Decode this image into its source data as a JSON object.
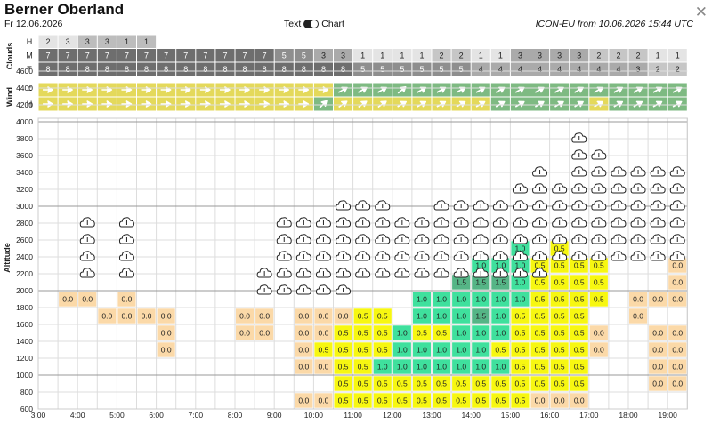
{
  "header": {
    "title": "Berner Oberland",
    "date": "Fr 12.06.2026",
    "toggle_text": "Text",
    "toggle_chart": "Chart",
    "model_info": "ICON-EU from 10.06.2026 15:44 UTC",
    "close_glyph": "✕"
  },
  "colors": {
    "cell_00": "#fbd9a8",
    "cell_05": "#f7f711",
    "cell_10": "#3fe09d",
    "cell_15": "#55b586",
    "wind_yellow": "#e4d95b",
    "wind_green": "#7eba82",
    "grid": "#dddddd"
  },
  "chart_data": {
    "type": "heatmap",
    "ylabel": "Altitude",
    "clouds_label": "Clouds",
    "wind_label": "Wind",
    "cloud_row_labels": [
      "H",
      "M",
      "T"
    ],
    "wind_row_labels": [
      "F",
      "H"
    ],
    "x_ticks": [
      "3:00",
      "4:00",
      "5:00",
      "6:00",
      "7:00",
      "8:00",
      "9:00",
      "10:00",
      "11:00",
      "12:00",
      "13:00",
      "14:00",
      "15:00",
      "16:00",
      "17:00",
      "18:00",
      "19:00"
    ],
    "y_ticks": [
      600,
      800,
      1000,
      1200,
      1400,
      1600,
      1800,
      2000,
      2200,
      2400,
      2600,
      2800,
      3000,
      3200,
      3400,
      3600,
      3800,
      4000,
      4200,
      4400,
      4600
    ],
    "ylim": [
      600,
      4700
    ],
    "clouds_H": [
      "2",
      "3",
      "3",
      "3",
      "1",
      "1",
      "",
      "",
      "",
      "",
      "",
      "",
      "",
      "",
      "",
      "",
      "",
      "",
      "",
      "",
      "",
      "",
      "",
      "",
      "",
      "",
      "",
      "",
      "",
      "",
      "",
      "",
      ""
    ],
    "clouds_M": [
      "7",
      "7",
      "7",
      "7",
      "7",
      "7",
      "7",
      "7",
      "7",
      "7",
      "7",
      "7",
      "5",
      "5",
      "3",
      "3",
      "1",
      "1",
      "1",
      "1",
      "2",
      "2",
      "1",
      "1",
      "3",
      "3",
      "3",
      "3",
      "2",
      "2",
      "2",
      "1",
      "1"
    ],
    "clouds_T": [
      "8",
      "8",
      "8",
      "8",
      "8",
      "8",
      "8",
      "8",
      "8",
      "8",
      "8",
      "8",
      "8",
      "8",
      "8",
      "8",
      "5",
      "5",
      "5",
      "5",
      "5",
      "5",
      "4",
      "4",
      "4",
      "4",
      "4",
      "4",
      "4",
      "4",
      "3",
      "2",
      "2"
    ],
    "cloud_icon_rows": [
      {
        "alt": 2000,
        "cols": [
          11,
          12,
          13,
          14,
          15
        ]
      },
      {
        "alt": 2200,
        "cols": [
          2,
          4,
          11,
          12,
          13,
          14,
          15,
          16,
          17,
          18,
          19,
          20,
          21,
          22,
          23,
          24,
          25
        ]
      },
      {
        "alt": 2400,
        "cols": [
          2,
          4,
          12,
          13,
          14,
          15,
          16,
          17,
          18,
          19,
          20,
          21,
          22,
          23,
          24,
          25,
          26,
          27,
          28,
          29,
          30,
          31,
          32
        ]
      },
      {
        "alt": 2600,
        "cols": [
          2,
          4,
          12,
          13,
          14,
          15,
          16,
          17,
          18,
          19,
          20,
          21,
          22,
          23,
          24,
          25,
          26,
          27,
          28,
          29,
          30,
          31,
          32
        ]
      },
      {
        "alt": 2800,
        "cols": [
          2,
          4,
          12,
          13,
          14,
          15,
          16,
          17,
          18,
          19,
          20,
          21,
          22,
          23,
          24,
          25,
          26,
          27,
          28,
          29,
          30,
          31,
          32
        ]
      },
      {
        "alt": 3000,
        "cols": [
          15,
          16,
          17,
          20,
          21,
          22,
          23,
          24,
          25,
          26,
          27,
          28,
          29,
          30,
          31,
          32
        ]
      },
      {
        "alt": 3200,
        "cols": [
          24,
          25,
          26,
          27,
          28,
          29,
          30,
          31,
          32
        ]
      },
      {
        "alt": 3400,
        "cols": [
          25,
          27,
          28,
          29,
          30,
          31,
          32
        ]
      },
      {
        "alt": 3600,
        "cols": [
          27,
          28
        ]
      },
      {
        "alt": 3800,
        "cols": [
          27
        ]
      }
    ],
    "thermal_rows": [
      {
        "alt": 700,
        "cells": [
          [
            13,
            "0.0"
          ],
          [
            14,
            "0.0"
          ],
          [
            15,
            "0.5"
          ],
          [
            16,
            "0.5"
          ],
          [
            17,
            "0.5"
          ],
          [
            18,
            "0.5"
          ],
          [
            19,
            "0.5"
          ],
          [
            20,
            "0.5"
          ],
          [
            21,
            "0.5"
          ],
          [
            22,
            "0.5"
          ],
          [
            23,
            "0.5"
          ],
          [
            24,
            "0.5"
          ],
          [
            25,
            "0.0"
          ],
          [
            26,
            "0.0"
          ],
          [
            27,
            "0.0"
          ]
        ]
      },
      {
        "alt": 900,
        "cells": [
          [
            15,
            "0.5"
          ],
          [
            16,
            "0.5"
          ],
          [
            17,
            "0.5"
          ],
          [
            18,
            "0.5"
          ],
          [
            19,
            "0.5"
          ],
          [
            20,
            "0.5"
          ],
          [
            21,
            "0.5"
          ],
          [
            22,
            "0.5"
          ],
          [
            23,
            "0.5"
          ],
          [
            24,
            "0.5"
          ],
          [
            25,
            "0.5"
          ],
          [
            26,
            "0.5"
          ],
          [
            27,
            "0.5"
          ],
          [
            31,
            "0.0"
          ],
          [
            32,
            "0.0"
          ]
        ]
      },
      {
        "alt": 1100,
        "cells": [
          [
            13,
            "0.0"
          ],
          [
            14,
            "0.0"
          ],
          [
            15,
            "0.5"
          ],
          [
            16,
            "0.5"
          ],
          [
            17,
            "1.0"
          ],
          [
            18,
            "1.0"
          ],
          [
            19,
            "1.0"
          ],
          [
            20,
            "1.0"
          ],
          [
            21,
            "1.0"
          ],
          [
            22,
            "1.0"
          ],
          [
            23,
            "1.0"
          ],
          [
            24,
            "0.5"
          ],
          [
            25,
            "0.5"
          ],
          [
            26,
            "0.5"
          ],
          [
            27,
            "0.5"
          ],
          [
            31,
            "0.0"
          ],
          [
            32,
            "0.0"
          ]
        ]
      },
      {
        "alt": 1300,
        "cells": [
          [
            6,
            "0.0"
          ],
          [
            13,
            "0.0"
          ],
          [
            14,
            "0.5"
          ],
          [
            15,
            "0.5"
          ],
          [
            16,
            "0.5"
          ],
          [
            17,
            "0.5"
          ],
          [
            18,
            "1.0"
          ],
          [
            19,
            "1.0"
          ],
          [
            20,
            "1.0"
          ],
          [
            21,
            "1.0"
          ],
          [
            22,
            "1.0"
          ],
          [
            23,
            "0.5"
          ],
          [
            24,
            "0.5"
          ],
          [
            25,
            "0.5"
          ],
          [
            26,
            "0.5"
          ],
          [
            27,
            "0.5"
          ],
          [
            28,
            "0.0"
          ],
          [
            31,
            "0.0"
          ],
          [
            32,
            "0.0"
          ]
        ]
      },
      {
        "alt": 1500,
        "cells": [
          [
            6,
            "0.0"
          ],
          [
            10,
            "0.0"
          ],
          [
            11,
            "0.0"
          ],
          [
            13,
            "0.0"
          ],
          [
            14,
            "0.0"
          ],
          [
            15,
            "0.5"
          ],
          [
            16,
            "0.5"
          ],
          [
            17,
            "0.5"
          ],
          [
            18,
            "1.0"
          ],
          [
            19,
            "0.5"
          ],
          [
            20,
            "0.5"
          ],
          [
            21,
            "1.0"
          ],
          [
            22,
            "1.0"
          ],
          [
            23,
            "1.0"
          ],
          [
            24,
            "0.5"
          ],
          [
            25,
            "0.5"
          ],
          [
            26,
            "0.5"
          ],
          [
            27,
            "0.5"
          ],
          [
            28,
            "0.0"
          ],
          [
            31,
            "0.0"
          ],
          [
            32,
            "0.0"
          ]
        ]
      },
      {
        "alt": 1700,
        "cells": [
          [
            3,
            "0.0"
          ],
          [
            4,
            "0.0"
          ],
          [
            5,
            "0.0"
          ],
          [
            6,
            "0.0"
          ],
          [
            10,
            "0.0"
          ],
          [
            11,
            "0.0"
          ],
          [
            13,
            "0.0"
          ],
          [
            14,
            "0.0"
          ],
          [
            15,
            "0.0"
          ],
          [
            16,
            "0.5"
          ],
          [
            17,
            "0.5"
          ],
          [
            19,
            "1.0"
          ],
          [
            20,
            "1.0"
          ],
          [
            21,
            "1.0"
          ],
          [
            22,
            "1.5"
          ],
          [
            23,
            "1.0"
          ],
          [
            24,
            "0.5"
          ],
          [
            25,
            "0.5"
          ],
          [
            26,
            "0.5"
          ],
          [
            27,
            "0.5"
          ],
          [
            30,
            "0.0"
          ]
        ]
      },
      {
        "alt": 1900,
        "cells": [
          [
            1,
            "0.0"
          ],
          [
            2,
            "0.0"
          ],
          [
            4,
            "0.0"
          ],
          [
            19,
            "1.0"
          ],
          [
            20,
            "1.0"
          ],
          [
            21,
            "1.0"
          ],
          [
            22,
            "1.0"
          ],
          [
            23,
            "1.0"
          ],
          [
            24,
            "1.0"
          ],
          [
            25,
            "0.5"
          ],
          [
            26,
            "0.5"
          ],
          [
            27,
            "0.5"
          ],
          [
            28,
            "0.5"
          ],
          [
            30,
            "0.0"
          ],
          [
            31,
            "0.0"
          ],
          [
            32,
            "0.0"
          ]
        ]
      },
      {
        "alt": 2100,
        "cells": [
          [
            21,
            "1.5"
          ],
          [
            22,
            "1.5"
          ],
          [
            23,
            "1.5"
          ],
          [
            24,
            "1.0"
          ],
          [
            25,
            "0.5"
          ],
          [
            26,
            "0.5"
          ],
          [
            27,
            "0.5"
          ],
          [
            28,
            "0.5"
          ],
          [
            32,
            "0.0"
          ]
        ]
      },
      {
        "alt": 2300,
        "cells": [
          [
            22,
            "1.0"
          ],
          [
            23,
            "1.0"
          ],
          [
            24,
            "1.0"
          ],
          [
            25,
            "0.5"
          ],
          [
            26,
            "0.5"
          ],
          [
            27,
            "0.5"
          ],
          [
            28,
            "0.5"
          ],
          [
            32,
            "0.0"
          ]
        ]
      },
      {
        "alt": 2500,
        "cells": [
          [
            24,
            "1.0"
          ],
          [
            26,
            "0.5"
          ]
        ]
      }
    ],
    "wind_F": [
      "y",
      "y",
      "y",
      "y",
      "y",
      "y",
      "y",
      "y",
      "y",
      "y",
      "y",
      "y",
      "y",
      "y",
      "y",
      "g",
      "g",
      "g",
      "g",
      "g",
      "g",
      "g",
      "g",
      "g",
      "g",
      "g",
      "g",
      "g",
      "g",
      "g",
      "g",
      "g",
      "g"
    ],
    "wind_H": [
      "y",
      "y",
      "y",
      "y",
      "y",
      "y",
      "y",
      "y",
      "y",
      "y",
      "y",
      "y",
      "y",
      "y",
      "g",
      "y",
      "y",
      "y",
      "y",
      "y",
      "y",
      "y",
      "y",
      "g",
      "g",
      "g",
      "g",
      "g",
      "y",
      "g",
      "g",
      "g",
      "g"
    ],
    "wind_dir_F": [
      0,
      0,
      0,
      0,
      0,
      0,
      0,
      0,
      0,
      0,
      0,
      0,
      0,
      0,
      0,
      -30,
      -30,
      -30,
      -40,
      -30,
      -30,
      -30,
      -30,
      -30,
      -30,
      -30,
      -30,
      -30,
      -30,
      -30,
      -30,
      -30,
      -30
    ],
    "wind_dir_H": [
      0,
      0,
      0,
      0,
      0,
      0,
      0,
      0,
      0,
      0,
      0,
      0,
      0,
      0,
      -45,
      -35,
      -35,
      -35,
      -30,
      -30,
      -30,
      -30,
      -30,
      -30,
      -30,
      -30,
      -30,
      -30,
      -30,
      -30,
      -30,
      -30,
      -30
    ]
  }
}
